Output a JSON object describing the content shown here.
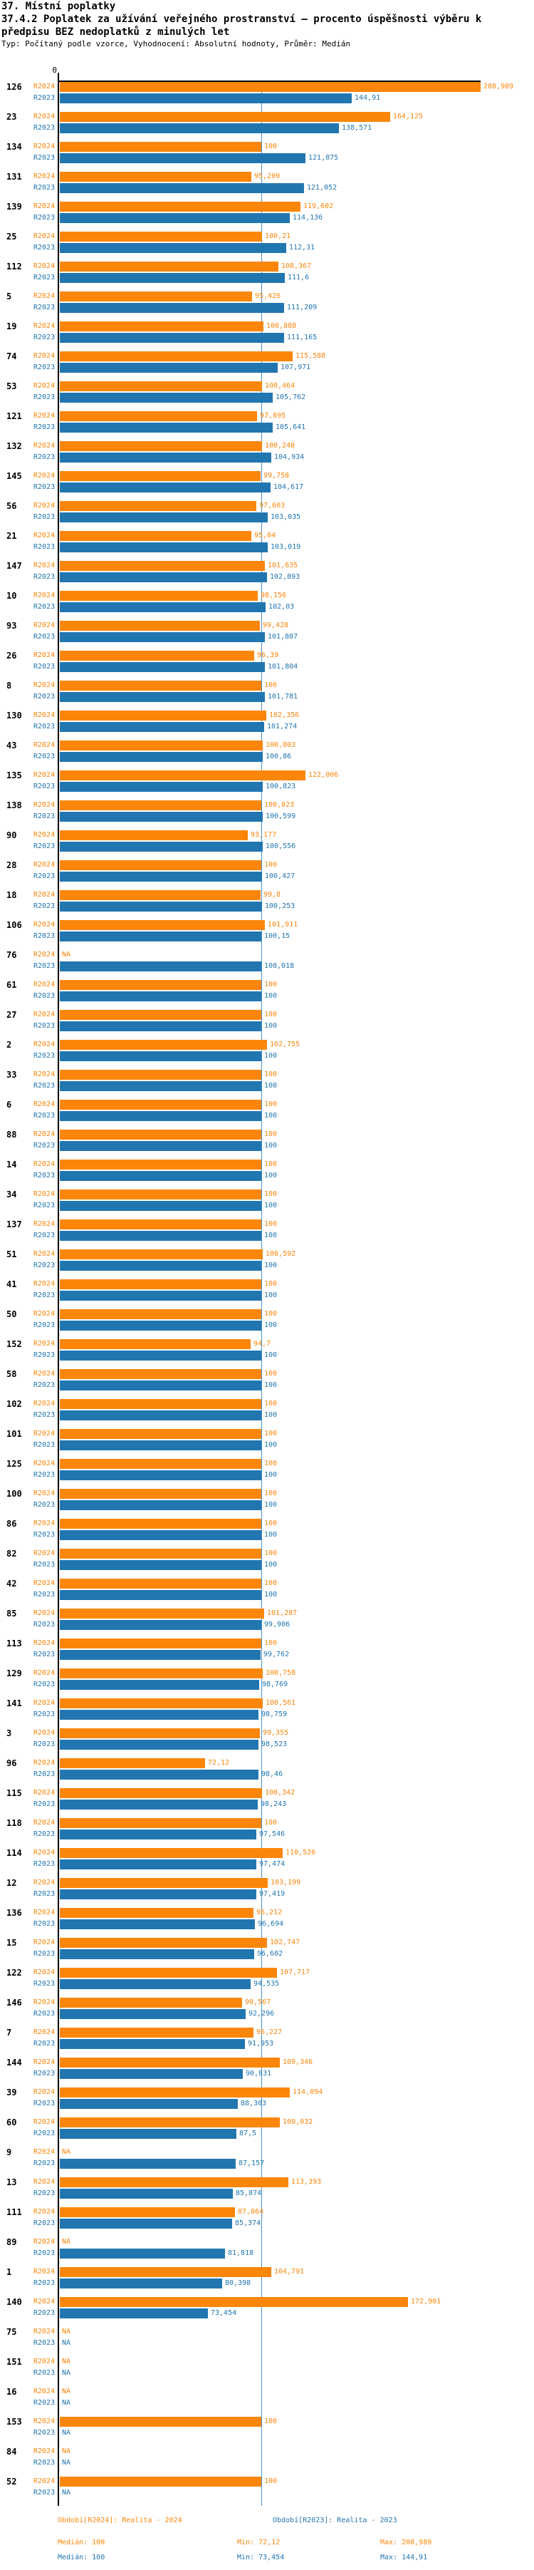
{
  "header": {
    "title": "37. Místní poplatky",
    "subtitle_line1": "37.4.2 Poplatek za užívání veřejného prostranství – procento úspěšnosti výběru k",
    "subtitle_line2": "předpisu BEZ nedoplatků z minulých let",
    "meta": "Typ: Počítaný podle vzorce, Vyhodnocení: Absolutní hodnoty, Průměr: Medián"
  },
  "colors": {
    "r2024": "#fb860a",
    "r2023": "#2176b0",
    "median_line": "#4a90c8",
    "axis": "#000000"
  },
  "chart_data": {
    "type": "bar",
    "orientation": "horizontal",
    "x_axis": {
      "zero_label": "0",
      "median_value": 100,
      "max_value": 208.989,
      "grid": false
    },
    "series": [
      {
        "key": "R2024",
        "label": "R2024"
      },
      {
        "key": "R2023",
        "label": "R2023"
      }
    ],
    "na_label": "NA",
    "groups": [
      {
        "id": "126",
        "R2024": 208.989,
        "R2023": 144.91
      },
      {
        "id": "23",
        "R2024": 164.125,
        "R2023": 138.571
      },
      {
        "id": "134",
        "R2024": 100,
        "R2023": 121.875
      },
      {
        "id": "131",
        "R2024": 95.209,
        "R2023": 121.052
      },
      {
        "id": "139",
        "R2024": 119.602,
        "R2023": 114.136
      },
      {
        "id": "25",
        "R2024": 100.21,
        "R2023": 112.31
      },
      {
        "id": "112",
        "R2024": 108.367,
        "R2023": 111.6
      },
      {
        "id": "5",
        "R2024": 95.426,
        "R2023": 111.209
      },
      {
        "id": "19",
        "R2024": 100.888,
        "R2023": 111.165
      },
      {
        "id": "74",
        "R2024": 115.588,
        "R2023": 107.971
      },
      {
        "id": "53",
        "R2024": 100.464,
        "R2023": 105.762
      },
      {
        "id": "121",
        "R2024": 97.895,
        "R2023": 105.641
      },
      {
        "id": "132",
        "R2024": 100.248,
        "R2023": 104.934
      },
      {
        "id": "145",
        "R2024": 99.758,
        "R2023": 104.617
      },
      {
        "id": "56",
        "R2024": 97.603,
        "R2023": 103.035
      },
      {
        "id": "21",
        "R2024": 95.04,
        "R2023": 103.019
      },
      {
        "id": "147",
        "R2024": 101.635,
        "R2023": 102.893
      },
      {
        "id": "10",
        "R2024": 98.156,
        "R2023": 102.03
      },
      {
        "id": "93",
        "R2024": 99.428,
        "R2023": 101.807
      },
      {
        "id": "26",
        "R2024": 96.39,
        "R2023": 101.804
      },
      {
        "id": "8",
        "R2024": 100,
        "R2023": 101.781
      },
      {
        "id": "130",
        "R2024": 102.356,
        "R2023": 101.274
      },
      {
        "id": "43",
        "R2024": 100.803,
        "R2023": 100.86
      },
      {
        "id": "135",
        "R2024": 122.006,
        "R2023": 100.823
      },
      {
        "id": "138",
        "R2024": 100.023,
        "R2023": 100.599
      },
      {
        "id": "90",
        "R2024": 93.177,
        "R2023": 100.556
      },
      {
        "id": "28",
        "R2024": 100,
        "R2023": 100.427
      },
      {
        "id": "18",
        "R2024": 99.8,
        "R2023": 100.253
      },
      {
        "id": "106",
        "R2024": 101.911,
        "R2023": 100.15
      },
      {
        "id": "76",
        "R2024": null,
        "R2023": 100.018
      },
      {
        "id": "61",
        "R2024": 100,
        "R2023": 100
      },
      {
        "id": "27",
        "R2024": 100,
        "R2023": 100
      },
      {
        "id": "2",
        "R2024": 102.755,
        "R2023": 100
      },
      {
        "id": "33",
        "R2024": 100,
        "R2023": 100
      },
      {
        "id": "6",
        "R2024": 100,
        "R2023": 100
      },
      {
        "id": "88",
        "R2024": 100,
        "R2023": 100
      },
      {
        "id": "14",
        "R2024": 100,
        "R2023": 100
      },
      {
        "id": "34",
        "R2024": 100,
        "R2023": 100
      },
      {
        "id": "137",
        "R2024": 100,
        "R2023": 100
      },
      {
        "id": "51",
        "R2024": 100.592,
        "R2023": 100
      },
      {
        "id": "41",
        "R2024": 100,
        "R2023": 100
      },
      {
        "id": "50",
        "R2024": 100,
        "R2023": 100
      },
      {
        "id": "152",
        "R2024": 94.7,
        "R2023": 100
      },
      {
        "id": "58",
        "R2024": 100,
        "R2023": 100
      },
      {
        "id": "102",
        "R2024": 100,
        "R2023": 100
      },
      {
        "id": "101",
        "R2024": 100,
        "R2023": 100
      },
      {
        "id": "125",
        "R2024": 100,
        "R2023": 100
      },
      {
        "id": "100",
        "R2024": 100,
        "R2023": 100
      },
      {
        "id": "86",
        "R2024": 100,
        "R2023": 100
      },
      {
        "id": "82",
        "R2024": 100,
        "R2023": 100
      },
      {
        "id": "42",
        "R2024": 100,
        "R2023": 100
      },
      {
        "id": "85",
        "R2024": 101.287,
        "R2023": 99.906
      },
      {
        "id": "113",
        "R2024": 100,
        "R2023": 99.762
      },
      {
        "id": "129",
        "R2024": 100.758,
        "R2023": 98.769
      },
      {
        "id": "141",
        "R2024": 100.561,
        "R2023": 98.759
      },
      {
        "id": "3",
        "R2024": 99.355,
        "R2023": 98.523
      },
      {
        "id": "96",
        "R2024": 72.12,
        "R2023": 98.46
      },
      {
        "id": "115",
        "R2024": 100.342,
        "R2023": 98.243
      },
      {
        "id": "118",
        "R2024": 100,
        "R2023": 97.546
      },
      {
        "id": "114",
        "R2024": 110.526,
        "R2023": 97.474
      },
      {
        "id": "12",
        "R2024": 103.199,
        "R2023": 97.419
      },
      {
        "id": "136",
        "R2024": 96.212,
        "R2023": 96.694
      },
      {
        "id": "15",
        "R2024": 102.747,
        "R2023": 96.602
      },
      {
        "id": "122",
        "R2024": 107.717,
        "R2023": 94.535
      },
      {
        "id": "146",
        "R2024": 90.567,
        "R2023": 92.296
      },
      {
        "id": "7",
        "R2024": 96.227,
        "R2023": 91.953
      },
      {
        "id": "144",
        "R2024": 109.346,
        "R2023": 90.831
      },
      {
        "id": "39",
        "R2024": 114.094,
        "R2023": 88.303
      },
      {
        "id": "60",
        "R2024": 109.032,
        "R2023": 87.5
      },
      {
        "id": "9",
        "R2024": null,
        "R2023": 87.157
      },
      {
        "id": "13",
        "R2024": 113.393,
        "R2023": 85.874
      },
      {
        "id": "111",
        "R2024": 87.064,
        "R2023": 85.374
      },
      {
        "id": "89",
        "R2024": null,
        "R2023": 81.818
      },
      {
        "id": "1",
        "R2024": 104.791,
        "R2023": 80.398
      },
      {
        "id": "140",
        "R2024": 172.901,
        "R2023": 73.454
      },
      {
        "id": "75",
        "R2024": null,
        "R2023": null
      },
      {
        "id": "151",
        "R2024": null,
        "R2023": null
      },
      {
        "id": "16",
        "R2024": null,
        "R2023": null
      },
      {
        "id": "153",
        "R2024": 100,
        "R2023": null
      },
      {
        "id": "84",
        "R2024": null,
        "R2023": null
      },
      {
        "id": "52",
        "R2024": 100,
        "R2023": null
      }
    ]
  },
  "legend": {
    "r2024": "Období[R2024]: Realita - 2024",
    "r2023": "Období[R2023]: Realita - 2023",
    "stats_r2024": {
      "median": "Medián: 100",
      "min": "Min: 72,12",
      "max": "Max: 208,989"
    },
    "stats_r2023": {
      "median": "Medián: 100",
      "min": "Min: 73,454",
      "max": "Max: 144,91"
    }
  }
}
